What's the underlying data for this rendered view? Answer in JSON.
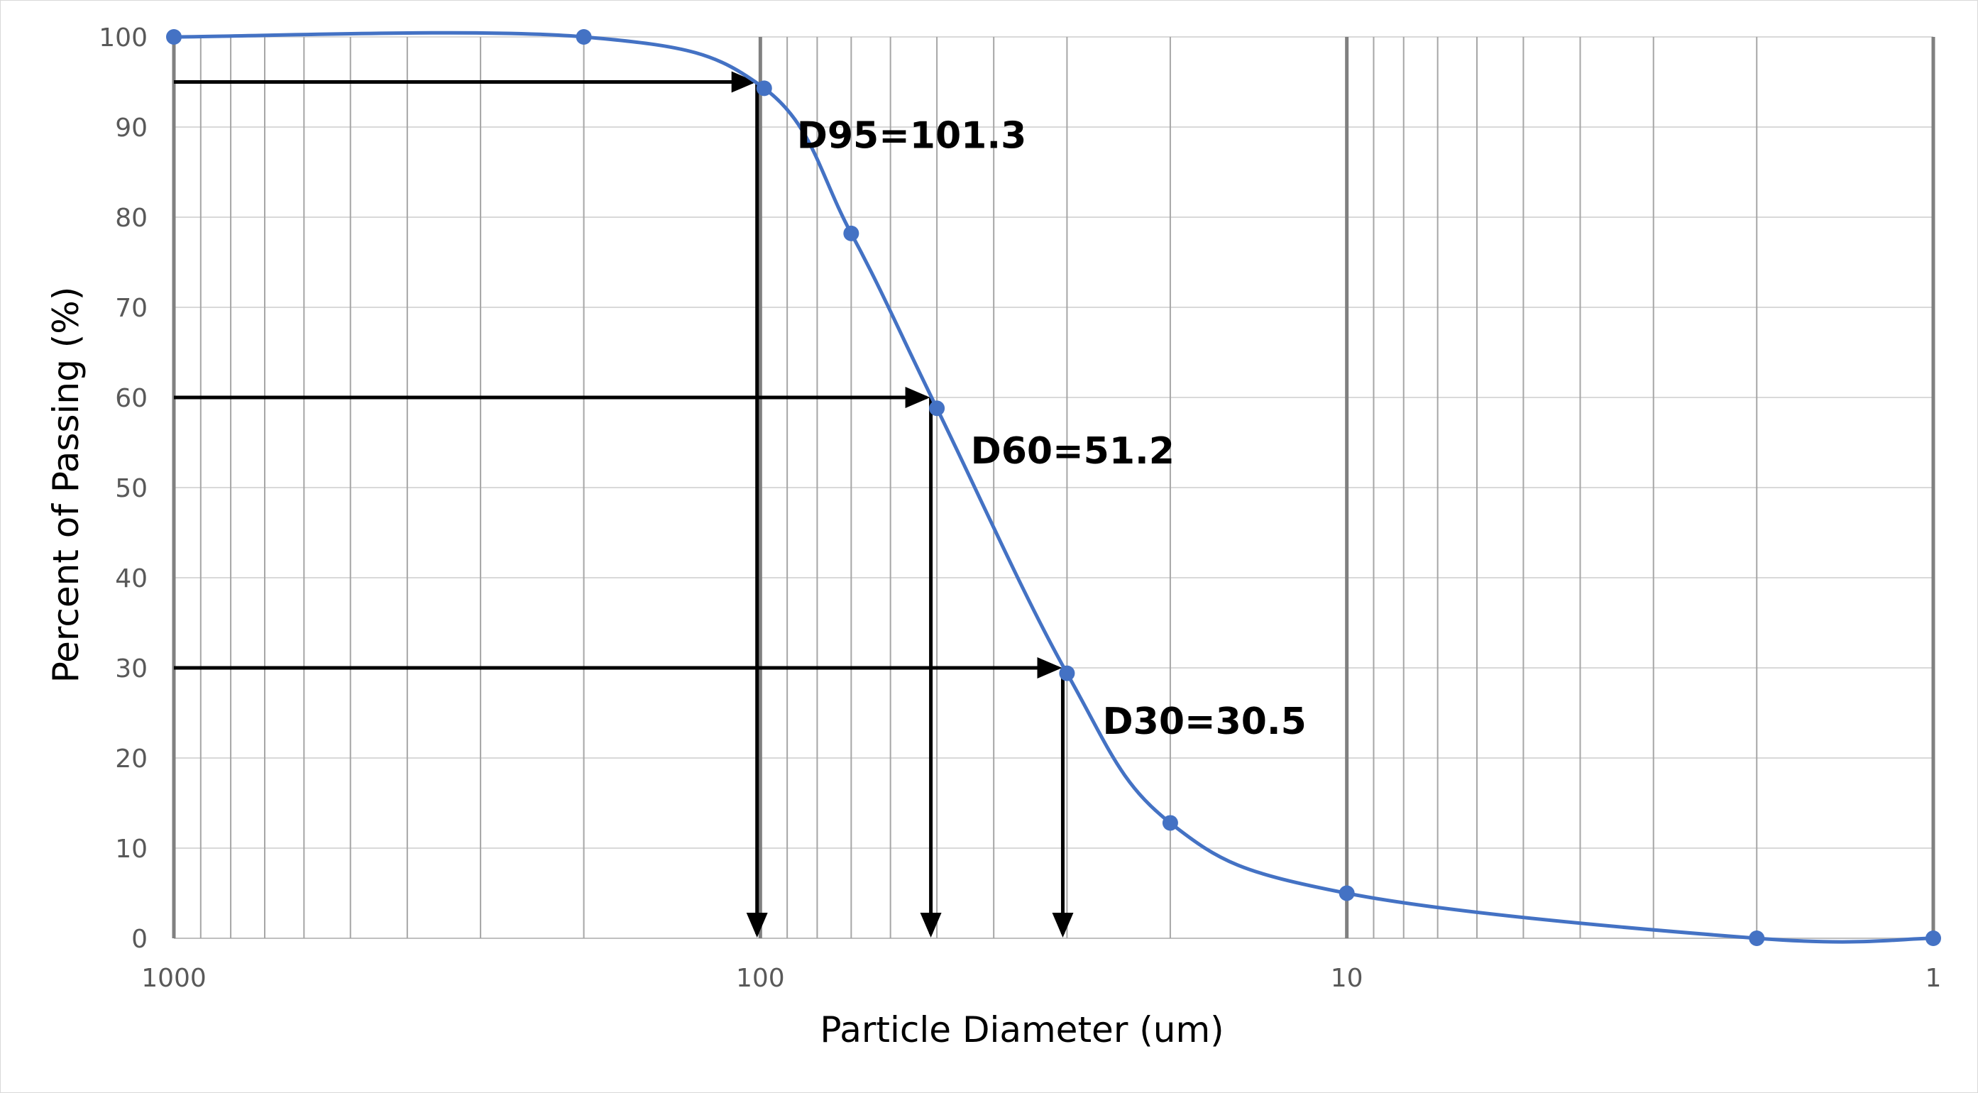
{
  "chart_data": {
    "type": "scatter",
    "xlabel": "Particle Diameter (um)",
    "ylabel": "Percent of Passing (%)",
    "x_scale": "log",
    "x_reversed": true,
    "xlim": [
      1000,
      1
    ],
    "ylim": [
      0,
      100
    ],
    "grid": true,
    "x_ticks": [
      1000,
      100,
      10,
      1
    ],
    "x_tick_labels": [
      "1000",
      "100",
      "10",
      "1"
    ],
    "y_ticks": [
      0,
      10,
      20,
      30,
      40,
      50,
      60,
      70,
      80,
      90,
      100
    ],
    "y_tick_labels": [
      "0",
      "10",
      "20",
      "30",
      "40",
      "50",
      "60",
      "70",
      "80",
      "90",
      "100"
    ],
    "series": [
      {
        "color": "#4472C4",
        "x": [
          1000,
          200,
          98.5,
          70,
          50,
          30,
          20,
          10,
          2,
          1
        ],
        "y": [
          100,
          100,
          94.3,
          78.2,
          58.8,
          29.4,
          12.8,
          5.0,
          0,
          0
        ]
      }
    ],
    "annotations": [
      {
        "text": "D95=101.3",
        "x": 101.3,
        "y": 95
      },
      {
        "text": "D60=51.2",
        "x": 51.2,
        "y": 60
      },
      {
        "text": "D30=30.5",
        "x": 30.5,
        "y": 30
      }
    ],
    "colors": {
      "series": "#4472C4",
      "arrows": "#000000",
      "grid": "#d9d9d9",
      "minor_grid": "#a6a6a6",
      "major_grid": "#808080"
    }
  }
}
